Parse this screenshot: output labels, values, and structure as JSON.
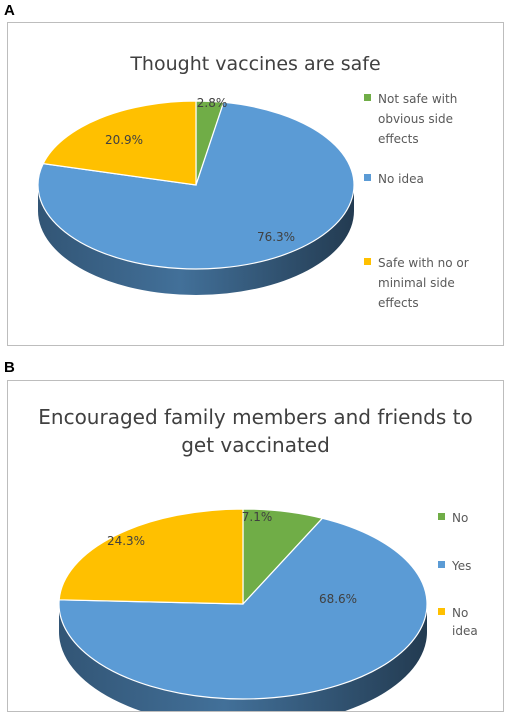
{
  "panels": [
    {
      "letter": "A",
      "title": "Thought vaccines are safe"
    },
    {
      "letter": "B",
      "title_line1": "Encouraged family members and friends to",
      "title_line2": "get vaccinated"
    }
  ],
  "chart_data": [
    {
      "type": "pie",
      "title": "Thought vaccines are safe",
      "style": "3d",
      "legend_position": "right",
      "categories": [
        "Not safe with obvious side effects",
        "No idea",
        "Safe with no or minimal  side effects"
      ],
      "values": [
        2.8,
        76.3,
        20.9
      ],
      "labels": [
        "2.8%",
        "76.3%",
        "20.9%"
      ],
      "legend": [
        [
          "Not safe with",
          "obvious side",
          "effects"
        ],
        [
          "No idea"
        ],
        [
          "Safe with no or",
          "minimal  side",
          "effects"
        ]
      ],
      "colors": [
        "#70ad47",
        "#5b9bd5",
        "#ffc000"
      ]
    },
    {
      "type": "pie",
      "title": "Encouraged family members and friends to get vaccinated",
      "style": "3d",
      "legend_position": "right",
      "categories": [
        "No",
        "Yes",
        "No idea"
      ],
      "values": [
        7.1,
        68.6,
        24.3
      ],
      "labels": [
        "7.1%",
        "68.6%",
        "24.3%"
      ],
      "legend": [
        [
          "No"
        ],
        [
          "Yes"
        ],
        [
          "No",
          "idea"
        ]
      ],
      "colors": [
        "#70ad47",
        "#5b9bd5",
        "#ffc000"
      ]
    }
  ]
}
